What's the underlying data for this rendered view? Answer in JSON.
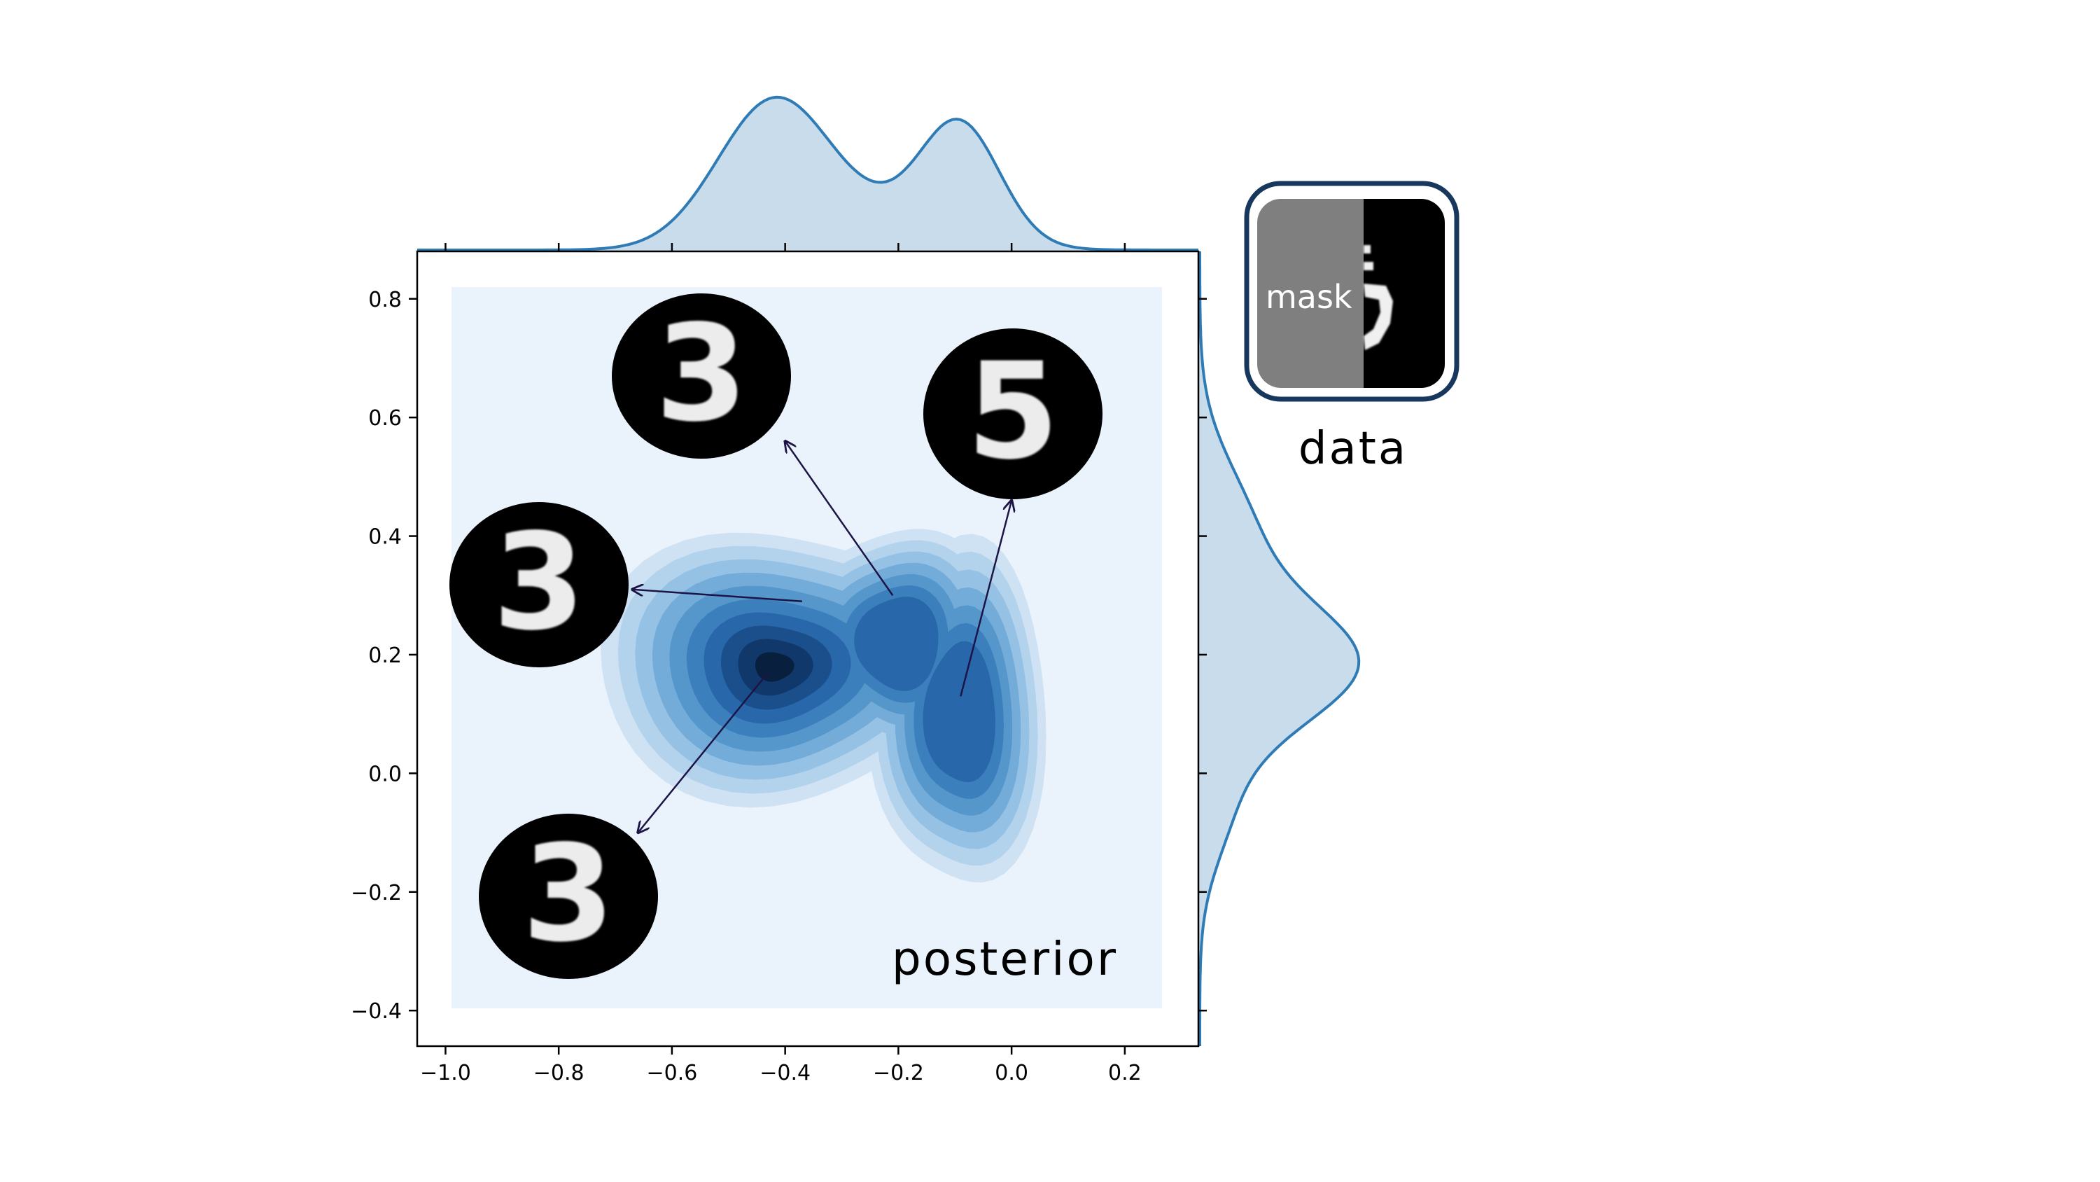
{
  "chart_data": {
    "type": "kde-joint",
    "xlim": [
      -1.05,
      0.33
    ],
    "ylim": [
      -0.46,
      0.88
    ],
    "x_ticks": [
      -1.0,
      -0.8,
      -0.6,
      -0.4,
      -0.2,
      0.0,
      0.2
    ],
    "x_tick_labels": [
      "−1.0",
      "−0.8",
      "−0.6",
      "−0.4",
      "−0.2",
      "0.0",
      "0.2"
    ],
    "y_ticks": [
      -0.4,
      -0.2,
      0.0,
      0.2,
      0.4,
      0.6,
      0.8
    ],
    "y_tick_labels": [
      "−0.4",
      "−0.2",
      "0.0",
      "0.2",
      "0.4",
      "0.6",
      "0.8"
    ],
    "density_modes": [
      {
        "x": -0.42,
        "y": 0.18,
        "weight": 1.0,
        "sx": 0.11,
        "sy": 0.085
      },
      {
        "x": -0.2,
        "y": 0.22,
        "weight": 0.55,
        "sx": 0.07,
        "sy": 0.08
      },
      {
        "x": -0.09,
        "y": 0.1,
        "weight": 0.55,
        "sx": 0.06,
        "sy": 0.12
      }
    ],
    "marginal_x_peaks": [
      -0.42,
      -0.09
    ],
    "marginal_y_peak": 0.18,
    "annotations": [
      {
        "label": "posterior",
        "x": -0.01,
        "y": -0.32
      },
      {
        "label": "data"
      }
    ],
    "sample_arrows": [
      {
        "from": [
          -0.37,
          0.29
        ],
        "to": [
          -0.67,
          0.31
        ],
        "digit": "3"
      },
      {
        "from": [
          -0.21,
          0.3
        ],
        "to": [
          -0.4,
          0.56
        ],
        "digit": "3"
      },
      {
        "from": [
          -0.09,
          0.13
        ],
        "to": [
          0.0,
          0.46
        ],
        "digit": "5"
      },
      {
        "from": [
          -0.43,
          0.17
        ],
        "to": [
          -0.66,
          -0.1
        ],
        "digit": "3"
      }
    ],
    "colors": {
      "fill_light": "#eaf3fb",
      "kde_dark": "#08306b",
      "marginal_line": "#2f7bb5",
      "marginal_fill": "#c8dceb",
      "arrow": "#1c1446",
      "frame_border": "#17385c"
    }
  },
  "inset": {
    "mask_label": "mask",
    "caption": "data"
  }
}
